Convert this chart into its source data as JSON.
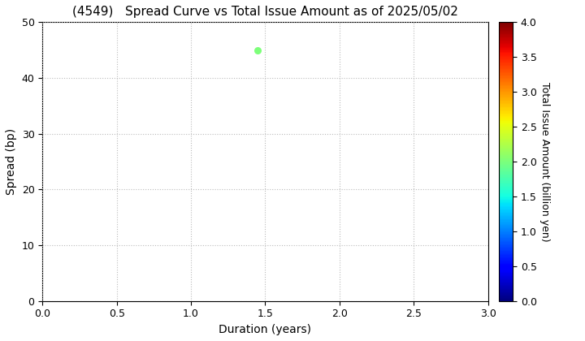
{
  "title": "(4549)   Spread Curve vs Total Issue Amount as of 2025/05/02",
  "xlabel": "Duration (years)",
  "ylabel": "Spread (bp)",
  "colorbar_label": "Total Issue Amount (billion yen)",
  "xlim": [
    0.0,
    3.0
  ],
  "ylim": [
    0,
    50
  ],
  "xticks": [
    0.0,
    0.5,
    1.0,
    1.5,
    2.0,
    2.5,
    3.0
  ],
  "yticks": [
    0,
    10,
    20,
    30,
    40,
    50
  ],
  "colorbar_ticks": [
    0.0,
    0.5,
    1.0,
    1.5,
    2.0,
    2.5,
    3.0,
    3.5,
    4.0
  ],
  "cmap_min": 0.0,
  "cmap_max": 4.0,
  "scatter_x": [
    1.45
  ],
  "scatter_y": [
    45
  ],
  "scatter_c": [
    2.0
  ],
  "scatter_size": 30,
  "grid_color": "#bbbbbb",
  "grid_linestyle": "dotted",
  "background_color": "#ffffff",
  "title_fontsize": 11,
  "axis_label_fontsize": 10,
  "colorbar_label_fontsize": 9,
  "tick_fontsize": 9
}
